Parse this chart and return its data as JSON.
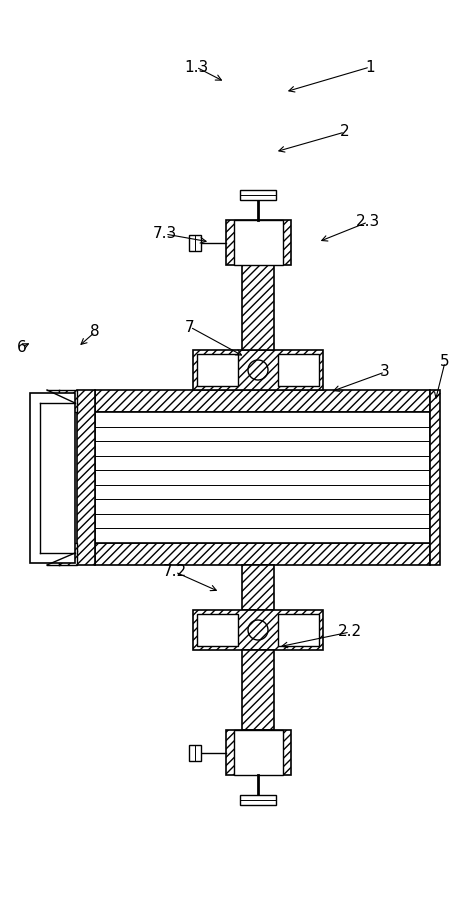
{
  "bg_color": "#ffffff",
  "fig_width": 4.6,
  "fig_height": 9.02,
  "dpi": 100
}
